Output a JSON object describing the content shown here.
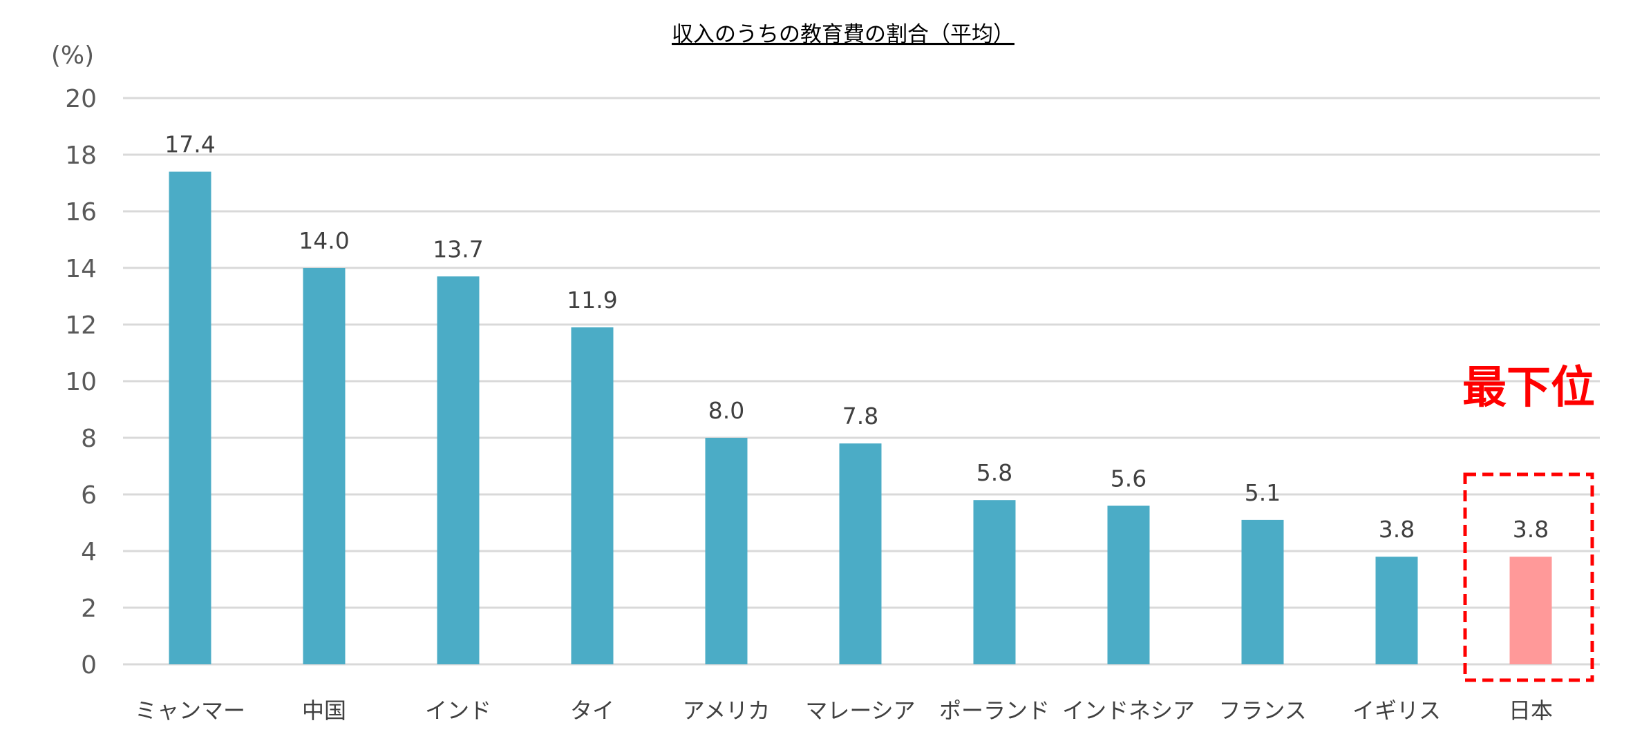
{
  "chart_data": {
    "type": "bar",
    "title": "収入のうちの教育費の割合（平均）",
    "ylabel": "(%)",
    "ylim": [
      0,
      20
    ],
    "yticks": [
      0,
      2,
      4,
      6,
      8,
      10,
      12,
      14,
      16,
      18,
      20
    ],
    "grid": true,
    "categories": [
      "ミャンマー",
      "中国",
      "インド",
      "タイ",
      "アメリカ",
      "マレーシア",
      "ポーランド",
      "インドネシア",
      "フランス",
      "イギリス",
      "日本"
    ],
    "values": [
      17.4,
      14.0,
      13.7,
      11.9,
      8.0,
      7.8,
      5.8,
      5.6,
      5.1,
      3.8,
      3.8
    ],
    "value_labels": [
      "17.4",
      "14.0",
      "13.7",
      "11.9",
      "8.0",
      "7.8",
      "5.8",
      "5.6",
      "5.1",
      "3.8",
      "3.8"
    ],
    "highlight_index": 10,
    "annotation": "最下位",
    "colors": {
      "bar": "#4BACC6",
      "highlight": "#FF9999",
      "annotation": "#FF0000",
      "grid": "#D9D9D9"
    }
  }
}
